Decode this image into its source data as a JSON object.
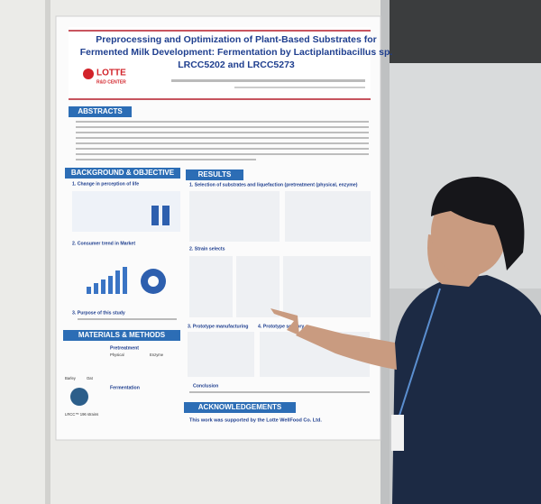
{
  "poster": {
    "title_lines": [
      "Preprocessing and Optimization of Plant-Based Substrates for",
      "Fermented Milk Development: Fermentation by Lactiplantibacillus sp.",
      "LRCC5202 and LRCC5273"
    ],
    "logo": {
      "brand": "LOTTE",
      "sub": "R&D CENTER"
    },
    "sections": [
      {
        "heading": "ABSTRACTS",
        "items": []
      },
      {
        "heading": "BACKGROUND & OBJECTIVE",
        "items": [
          "1. Change in perception of life",
          "2. Consumer trend in Market",
          "3. Purpose of this study"
        ]
      },
      {
        "heading": "MATERIALS & METHODS",
        "items": [
          "Pretreatment",
          "Physical",
          "Enzyme",
          "Barley",
          "Oat",
          "LRCC™ 196 strains",
          "Fermentation"
        ]
      },
      {
        "heading": "RESULTS",
        "items": [
          "1. Selection of substrates and liquefaction (pretreatment (physical, enzyme)",
          "2. Strain selects",
          "3. Prototype manufacturing",
          "4. Prototype sensory",
          "Conclusion"
        ]
      },
      {
        "heading": "ACKNOWLEDGEMENTS",
        "items": [
          "This work was supported by the Lotte WellFood Co. Ltd."
        ]
      }
    ]
  }
}
